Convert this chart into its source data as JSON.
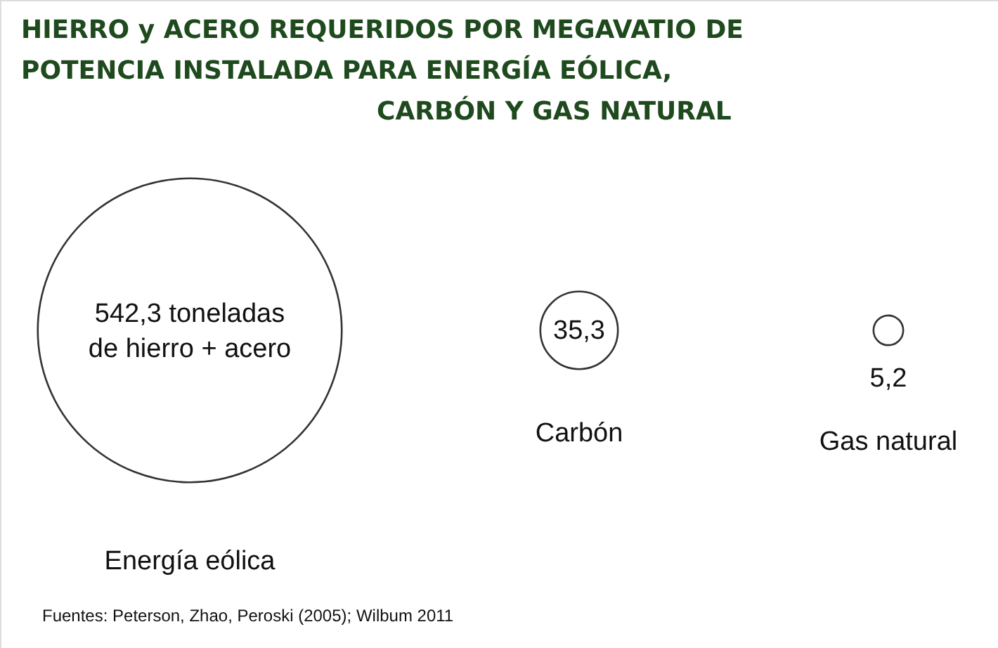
{
  "chart_data": {
    "type": "other",
    "title": "HIERRO y ACERO REQUERIDOS POR MEGAVATIO DE\nPOTENCIA  INSTALADA PARA ENERGÍA EÓLICA,\nCARBÓN Y  GAS NATURAL",
    "categories": [
      "Energía eólica",
      "Carbón",
      "Gas natural"
    ],
    "values": [
      542.3,
      35.3,
      5.2
    ],
    "value_labels": [
      "542,3 toneladas\nde hierro + acero",
      "35,3",
      "5,2"
    ],
    "color": "#333333",
    "annotations": [
      "Fuentes: Peterson, Zhao, Peroski (2005); Wilbum 2011"
    ]
  }
}
